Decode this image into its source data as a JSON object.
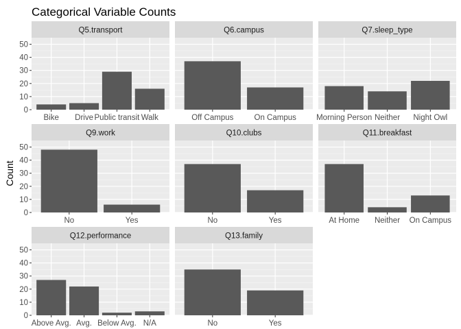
{
  "chart_data": {
    "type": "bar",
    "title": "Categorical Variable Counts",
    "ylabel": "Count",
    "xlabel": "",
    "ylim": [
      0,
      55
    ],
    "yticks": [
      0,
      10,
      20,
      30,
      40,
      50
    ],
    "grid": true,
    "colors": {
      "bar": "#595959",
      "panel_bg": "#ebebeb",
      "strip_bg": "#d9d9d9",
      "grid_major": "#ffffff",
      "text": "#000000",
      "tick_text": "#4d4d4d"
    },
    "facets": [
      {
        "name": "Q5.transport",
        "categories": [
          "Bike",
          "Drive",
          "Public transit",
          "Walk"
        ],
        "values": [
          4,
          5,
          29,
          16
        ]
      },
      {
        "name": "Q6.campus",
        "categories": [
          "Off Campus",
          "On Campus"
        ],
        "values": [
          37,
          17
        ]
      },
      {
        "name": "Q7.sleep_type",
        "categories": [
          "Morning Person",
          "Neither",
          "Night Owl"
        ],
        "values": [
          18,
          14,
          22
        ]
      },
      {
        "name": "Q9.work",
        "categories": [
          "No",
          "Yes"
        ],
        "values": [
          48,
          6
        ]
      },
      {
        "name": "Q10.clubs",
        "categories": [
          "No",
          "Yes"
        ],
        "values": [
          37,
          17
        ]
      },
      {
        "name": "Q11.breakfast",
        "categories": [
          "At Home",
          "Neither",
          "On Campus"
        ],
        "values": [
          37,
          4,
          13
        ]
      },
      {
        "name": "Q12.performance",
        "categories": [
          "Above Avg.",
          "Avg.",
          "Below Avg.",
          "N/A"
        ],
        "values": [
          27,
          22,
          2,
          3
        ]
      },
      {
        "name": "Q13.family",
        "categories": [
          "No",
          "Yes"
        ],
        "values": [
          35,
          19
        ]
      }
    ]
  }
}
